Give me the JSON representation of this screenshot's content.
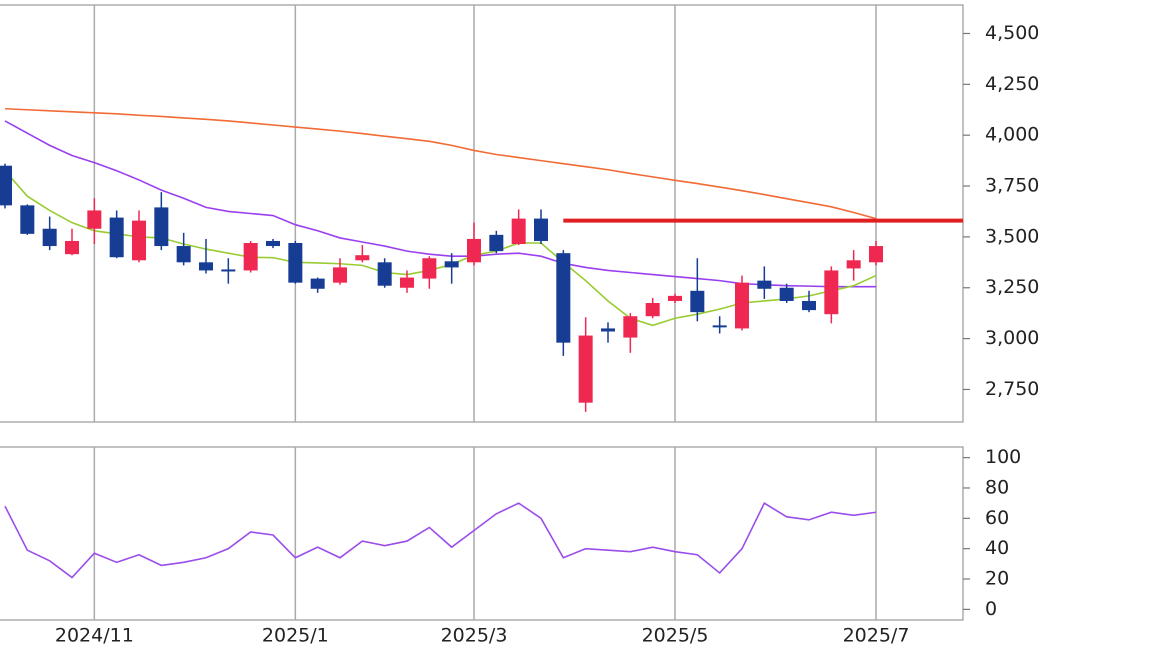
{
  "chart_data": [
    {
      "type": "candlestick",
      "open": [
        3850,
        3655,
        3540,
        3415,
        3540,
        3595,
        3385,
        3645,
        3455,
        3375,
        3340,
        3335,
        3480,
        3470,
        3295,
        3275,
        3385,
        3375,
        3250,
        3295,
        3380,
        3375,
        3510,
        3465,
        3590,
        3420,
        2685,
        3050,
        3005,
        3110,
        3185,
        3235,
        3065,
        3050,
        3285,
        3250,
        3185,
        3120,
        3345,
        3375
      ],
      "high": [
        3860,
        3660,
        3600,
        3540,
        3690,
        3630,
        3630,
        3720,
        3520,
        3490,
        3395,
        3480,
        3490,
        3480,
        3300,
        3395,
        3460,
        3395,
        3335,
        3405,
        3420,
        3570,
        3530,
        3635,
        3635,
        3435,
        3105,
        3080,
        3125,
        3200,
        3220,
        3395,
        3110,
        3310,
        3355,
        3270,
        3235,
        3355,
        3435,
        3480
      ],
      "low": [
        3640,
        3510,
        3435,
        3410,
        3465,
        3395,
        3375,
        3435,
        3360,
        3320,
        3270,
        3325,
        3445,
        3270,
        3225,
        3265,
        3375,
        3250,
        3225,
        3245,
        3270,
        3360,
        3420,
        3460,
        3465,
        2915,
        2640,
        2980,
        2930,
        3100,
        3175,
        3085,
        3025,
        3040,
        3195,
        3175,
        3130,
        3075,
        3285,
        3360
      ],
      "close": [
        3655,
        3515,
        3455,
        3480,
        3630,
        3400,
        3580,
        3455,
        3375,
        3335,
        3330,
        3470,
        3455,
        3275,
        3245,
        3350,
        3410,
        3260,
        3300,
        3395,
        3350,
        3490,
        3430,
        3590,
        3480,
        2980,
        3015,
        3035,
        3110,
        3175,
        3210,
        3130,
        3060,
        3275,
        3245,
        3185,
        3140,
        3335,
        3385,
        3455
      ],
      "up_color": "#ee2850",
      "down_color": "#163c94",
      "series": [
        {
          "color": "#f26a35",
          "values": [
            4130,
            4125,
            4120,
            4115,
            4110,
            4105,
            4098,
            4092,
            4085,
            4078,
            4070,
            4060,
            4050,
            4040,
            4030,
            4020,
            4008,
            3995,
            3983,
            3970,
            3950,
            3925,
            3905,
            3890,
            3875,
            3860,
            3845,
            3830,
            3812,
            3795,
            3778,
            3762,
            3745,
            3727,
            3708,
            3688,
            3668,
            3648,
            3620,
            3590
          ]
        },
        {
          "color": "#9a3ff0",
          "values": [
            4070,
            4010,
            3950,
            3900,
            3865,
            3825,
            3780,
            3730,
            3690,
            3645,
            3625,
            3615,
            3605,
            3560,
            3530,
            3495,
            3475,
            3455,
            3430,
            3415,
            3405,
            3405,
            3415,
            3420,
            3405,
            3370,
            3350,
            3335,
            3325,
            3315,
            3305,
            3295,
            3285,
            3270,
            3265,
            3260,
            3258,
            3255,
            3255,
            3255
          ]
        },
        {
          "color": "#99cc33",
          "values": [
            3825,
            3700,
            3630,
            3570,
            3530,
            3515,
            3500,
            3495,
            3465,
            3440,
            3420,
            3400,
            3398,
            3375,
            3372,
            3368,
            3360,
            3325,
            3315,
            3335,
            3365,
            3410,
            3430,
            3470,
            3470,
            3375,
            3285,
            3185,
            3100,
            3065,
            3100,
            3120,
            3145,
            3175,
            3185,
            3195,
            3210,
            3235,
            3260,
            3310
          ]
        }
      ],
      "hline": {
        "value": 3580,
        "x_start": 25,
        "color": "#e02020"
      },
      "ylim": [
        2590,
        4640
      ],
      "yticks": [
        {
          "value": 2750,
          "label": "2,750"
        },
        {
          "value": 3000,
          "label": "3,000"
        },
        {
          "value": 3250,
          "label": "3,250"
        },
        {
          "value": 3500,
          "label": "3,500"
        },
        {
          "value": 3750,
          "label": "3,750"
        },
        {
          "value": 4000,
          "label": "4,000"
        },
        {
          "value": 4250,
          "label": "4,250"
        },
        {
          "value": 4500,
          "label": "4,500"
        }
      ]
    },
    {
      "type": "line",
      "categories": [
        null,
        null,
        null,
        null,
        "2024/11",
        null,
        null,
        null,
        null,
        null,
        null,
        null,
        null,
        "2025/1",
        null,
        null,
        null,
        null,
        null,
        null,
        null,
        "2025/3",
        null,
        null,
        null,
        null,
        null,
        null,
        null,
        null,
        "2025/5",
        null,
        null,
        null,
        null,
        null,
        null,
        null,
        null,
        "2025/7"
      ],
      "series": [
        {
          "color": "#9b4dea",
          "values": [
            68,
            39,
            32,
            21,
            37,
            31,
            36,
            29,
            31,
            34,
            40,
            51,
            49,
            34,
            41,
            34,
            45,
            42,
            45,
            54,
            41,
            52,
            63,
            70,
            60,
            34,
            40,
            39,
            38,
            41,
            38,
            36,
            24,
            40,
            70,
            61,
            59,
            64,
            62,
            64
          ]
        }
      ],
      "ylim": [
        -7,
        107
      ],
      "yticks": [
        0,
        20,
        40,
        60,
        80,
        100
      ]
    }
  ]
}
